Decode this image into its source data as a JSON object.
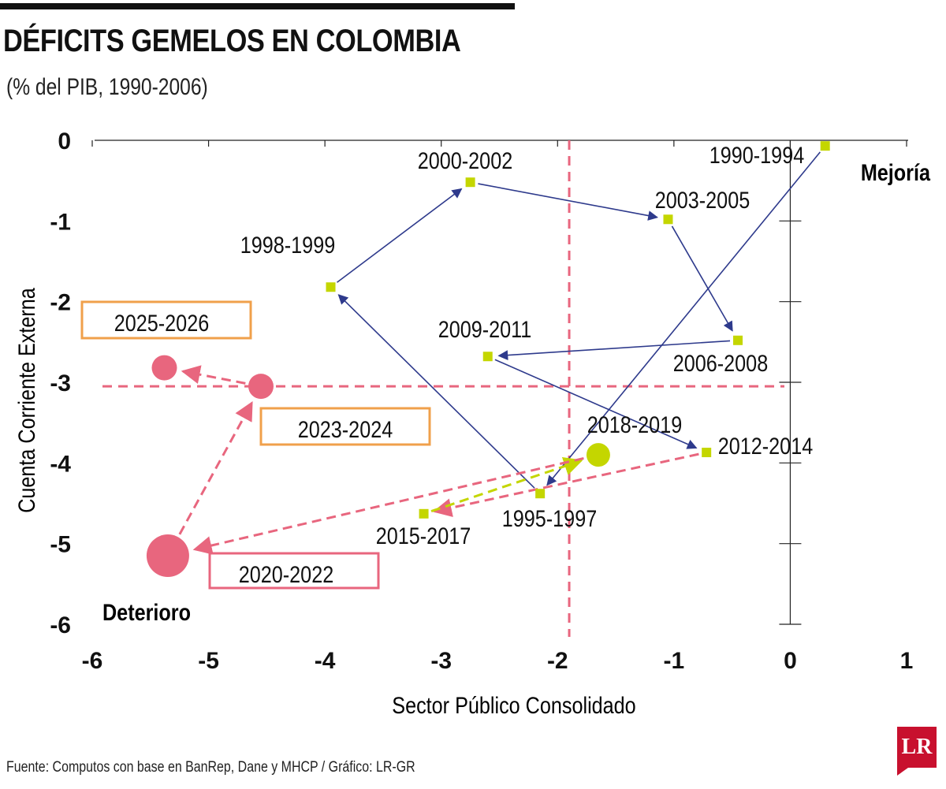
{
  "header": {
    "title": "DÉFICITS GEMELOS EN COLOMBIA",
    "subtitle": "(% del PIB, 1990-2006)"
  },
  "footer": {
    "source": "Fuente: Computos con base en BanRep, Dane y MHCP / Gráfico: LR-GR",
    "logo_text": "LR"
  },
  "colors": {
    "historical": "#c4d600",
    "arrow_historical": "#2e3a8c",
    "projection": "#e8667e",
    "box_orange": "#f0a04b",
    "box_pink": "#e8667e"
  },
  "chart_data": {
    "type": "scatter",
    "title": "DÉFICITS GEMELOS EN COLOMBIA",
    "subtitle": "(% del PIB, 1990-2006)",
    "xlabel": "Sector Público Consolidado",
    "ylabel": "Cuenta Corriente Externa",
    "xlim": [
      -6,
      1
    ],
    "ylim": [
      -6,
      0
    ],
    "xticks": [
      "-6",
      "-5",
      "-4",
      "-3",
      "-2",
      "-1",
      "0",
      "1"
    ],
    "yticks": [
      "0",
      "-1",
      "-2",
      "-3",
      "-4",
      "-5",
      "-6"
    ],
    "reference_lines": {
      "x": -1.9,
      "y": -3.05
    },
    "quadrant_labels": {
      "improve": "Mejoría",
      "deteriorate": "Deterioro"
    },
    "points": [
      {
        "label": "1990-1994",
        "x": 0.3,
        "y": -0.07,
        "group": "historical"
      },
      {
        "label": "1995-1997",
        "x": -2.15,
        "y": -4.38,
        "group": "historical"
      },
      {
        "label": "1998-1999",
        "x": -3.95,
        "y": -1.82,
        "group": "historical"
      },
      {
        "label": "2000-2002",
        "x": -2.75,
        "y": -0.52,
        "group": "historical"
      },
      {
        "label": "2003-2005",
        "x": -1.05,
        "y": -0.98,
        "group": "historical"
      },
      {
        "label": "2006-2008",
        "x": -0.45,
        "y": -2.48,
        "group": "historical"
      },
      {
        "label": "2009-2011",
        "x": -2.6,
        "y": -2.68,
        "group": "historical"
      },
      {
        "label": "2012-2014",
        "x": -0.72,
        "y": -3.87,
        "group": "historical"
      },
      {
        "label": "2015-2017",
        "x": -3.15,
        "y": -4.63,
        "group": "historical"
      },
      {
        "label": "2018-2019",
        "x": -1.65,
        "y": -3.9,
        "group": "historical-large"
      },
      {
        "label": "2020-2022",
        "x": -5.35,
        "y": -5.15,
        "group": "projection"
      },
      {
        "label": "2023-2024",
        "x": -4.55,
        "y": -3.05,
        "group": "projection"
      },
      {
        "label": "2025-2026",
        "x": -5.38,
        "y": -2.82,
        "group": "projection"
      }
    ],
    "path": [
      "1990-1994",
      "1995-1997",
      "1998-1999",
      "2000-2002",
      "2003-2005",
      "2006-2008",
      "2009-2011",
      "2012-2014",
      "2015-2017",
      "2018-2019",
      "2020-2022",
      "2023-2024",
      "2025-2026"
    ]
  }
}
